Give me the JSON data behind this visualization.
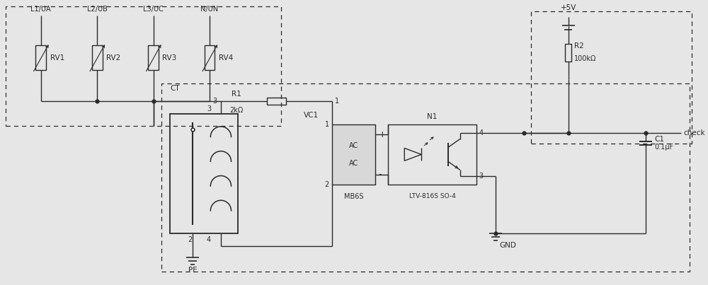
{
  "bg_color": "#e6e6e6",
  "line_color": "#2a2a2a",
  "varistor_labels": [
    "RV1",
    "RV2",
    "RV3",
    "RV4"
  ],
  "varistor_line_labels": [
    "L1/UA",
    "L2/UB",
    "L3/UC",
    "N/UN"
  ],
  "title_CT": "CT",
  "title_VC1": "VC1",
  "title_N1": "N1",
  "label_R1": "R1",
  "label_R1_val": "2kΩ",
  "label_R2": "R2",
  "label_R2_val": "100kΩ",
  "label_MB6S": "MB6S",
  "label_LTV": "LTV-816S SO-4",
  "label_PE": "PE",
  "label_GND": "GND",
  "label_5V": "+5V",
  "label_check": "check",
  "label_C1": "C1",
  "label_C1_val": "0.1μF"
}
